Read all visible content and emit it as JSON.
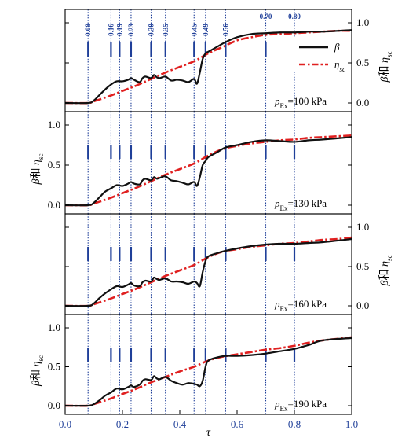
{
  "chart_data": {
    "type": "line",
    "xlabel": "τ",
    "xlim": [
      0.0,
      1.0
    ],
    "x_ticks": [
      "0.0",
      "0.2",
      "0.4",
      "0.6",
      "0.8",
      "1.0"
    ],
    "ylim": [
      0.0,
      1.0
    ],
    "ylabel_parts": {
      "greek": "β",
      "mid": "和",
      "eta": "η",
      "sub": "sc"
    },
    "y_ticks": [
      "0.0",
      "0.5",
      "1.0"
    ],
    "vertical_lines": {
      "values": [
        0.08,
        0.16,
        0.19,
        0.23,
        0.3,
        0.35,
        0.45,
        0.49,
        0.56,
        0.7,
        0.8
      ],
      "labels": [
        "0.08",
        "0.16",
        "0.19",
        "0.23",
        "0.30",
        "0.35",
        "0.45",
        "0.49",
        "0.56",
        "0.70",
        "0.80"
      ]
    },
    "legend": {
      "position": "top-right of first panel",
      "entries": [
        {
          "symbol": "β",
          "style": "solid",
          "color": "#111111"
        },
        {
          "symbol": "η",
          "sub": "sc",
          "style": "dash-dot",
          "color": "#e02020"
        }
      ]
    },
    "series_styles": {
      "beta": {
        "color": "#111111"
      },
      "eta": {
        "color": "#e02020"
      }
    },
    "panels": [
      {
        "annotation": {
          "p": "p",
          "sub": "Ex",
          "value": "=100 kPa"
        },
        "y_axis_side": "right",
        "beta": {
          "x": [
            0,
            0.08,
            0.1,
            0.12,
            0.14,
            0.16,
            0.18,
            0.2,
            0.22,
            0.23,
            0.24,
            0.26,
            0.27,
            0.28,
            0.3,
            0.31,
            0.32,
            0.33,
            0.35,
            0.37,
            0.39,
            0.41,
            0.43,
            0.45,
            0.46,
            0.47,
            0.48,
            0.49,
            0.5,
            0.53,
            0.56,
            0.6,
            0.65,
            0.7,
            0.75,
            0.8,
            0.85,
            0.9,
            1.0
          ],
          "y": [
            0,
            0,
            0.03,
            0.1,
            0.17,
            0.23,
            0.27,
            0.27,
            0.29,
            0.31,
            0.29,
            0.26,
            0.31,
            0.33,
            0.31,
            0.35,
            0.32,
            0.31,
            0.33,
            0.28,
            0.29,
            0.28,
            0.26,
            0.3,
            0.24,
            0.38,
            0.55,
            0.62,
            0.64,
            0.7,
            0.76,
            0.82,
            0.86,
            0.87,
            0.88,
            0.88,
            0.89,
            0.89,
            0.91
          ]
        },
        "eta": {
          "x": [
            0,
            0.08,
            0.1,
            0.15,
            0.2,
            0.25,
            0.3,
            0.35,
            0.4,
            0.45,
            0.5,
            0.55,
            0.6,
            0.65,
            0.7,
            0.75,
            0.8,
            0.85,
            0.9,
            0.95,
            1.0
          ],
          "y": [
            0,
            0,
            0.02,
            0.08,
            0.15,
            0.22,
            0.3,
            0.38,
            0.45,
            0.52,
            0.62,
            0.7,
            0.78,
            0.82,
            0.85,
            0.86,
            0.87,
            0.88,
            0.89,
            0.9,
            0.9
          ]
        }
      },
      {
        "annotation": {
          "p": "p",
          "sub": "Ex",
          "value": "=130 kPa"
        },
        "y_axis_side": "left",
        "beta": {
          "x": [
            0,
            0.08,
            0.1,
            0.12,
            0.14,
            0.16,
            0.18,
            0.2,
            0.22,
            0.23,
            0.24,
            0.26,
            0.27,
            0.28,
            0.3,
            0.31,
            0.32,
            0.33,
            0.35,
            0.37,
            0.39,
            0.41,
            0.43,
            0.45,
            0.46,
            0.47,
            0.48,
            0.49,
            0.5,
            0.53,
            0.56,
            0.6,
            0.65,
            0.7,
            0.75,
            0.8,
            0.85,
            0.9,
            1.0
          ],
          "y": [
            0,
            0,
            0.03,
            0.1,
            0.17,
            0.21,
            0.25,
            0.24,
            0.27,
            0.29,
            0.27,
            0.26,
            0.31,
            0.33,
            0.31,
            0.35,
            0.33,
            0.34,
            0.36,
            0.31,
            0.3,
            0.28,
            0.26,
            0.29,
            0.24,
            0.35,
            0.5,
            0.55,
            0.6,
            0.66,
            0.72,
            0.75,
            0.79,
            0.81,
            0.8,
            0.79,
            0.81,
            0.82,
            0.85
          ]
        },
        "eta": {
          "x": [
            0,
            0.08,
            0.1,
            0.15,
            0.2,
            0.25,
            0.3,
            0.35,
            0.4,
            0.45,
            0.5,
            0.55,
            0.6,
            0.65,
            0.7,
            0.75,
            0.8,
            0.85,
            0.9,
            0.95,
            1.0
          ],
          "y": [
            0,
            0,
            0.02,
            0.08,
            0.15,
            0.22,
            0.3,
            0.38,
            0.45,
            0.52,
            0.62,
            0.7,
            0.74,
            0.77,
            0.79,
            0.81,
            0.82,
            0.84,
            0.85,
            0.86,
            0.87
          ]
        }
      },
      {
        "annotation": {
          "p": "p",
          "sub": "Ex",
          "value": "=160 kPa"
        },
        "y_axis_side": "right",
        "beta": {
          "x": [
            0,
            0.08,
            0.1,
            0.12,
            0.14,
            0.16,
            0.18,
            0.2,
            0.22,
            0.23,
            0.24,
            0.26,
            0.27,
            0.28,
            0.3,
            0.31,
            0.32,
            0.33,
            0.35,
            0.37,
            0.39,
            0.41,
            0.43,
            0.45,
            0.46,
            0.47,
            0.48,
            0.49,
            0.5,
            0.53,
            0.56,
            0.6,
            0.65,
            0.7,
            0.75,
            0.8,
            0.85,
            0.9,
            1.0
          ],
          "y": [
            0,
            0,
            0.03,
            0.1,
            0.16,
            0.21,
            0.25,
            0.24,
            0.27,
            0.29,
            0.26,
            0.25,
            0.3,
            0.32,
            0.31,
            0.36,
            0.34,
            0.33,
            0.35,
            0.31,
            0.31,
            0.3,
            0.28,
            0.31,
            0.29,
            0.25,
            0.43,
            0.57,
            0.63,
            0.67,
            0.7,
            0.73,
            0.76,
            0.78,
            0.79,
            0.79,
            0.8,
            0.81,
            0.85
          ]
        },
        "eta": {
          "x": [
            0,
            0.08,
            0.1,
            0.15,
            0.2,
            0.25,
            0.3,
            0.35,
            0.4,
            0.45,
            0.5,
            0.55,
            0.6,
            0.65,
            0.7,
            0.75,
            0.8,
            0.85,
            0.9,
            0.95,
            1.0
          ],
          "y": [
            0,
            0,
            0.02,
            0.08,
            0.15,
            0.22,
            0.3,
            0.38,
            0.45,
            0.52,
            0.62,
            0.69,
            0.72,
            0.75,
            0.77,
            0.79,
            0.8,
            0.82,
            0.84,
            0.85,
            0.87
          ]
        }
      },
      {
        "annotation": {
          "p": "p",
          "sub": "Ex",
          "value": "=190 kPa"
        },
        "y_axis_side": "left",
        "beta": {
          "x": [
            0,
            0.08,
            0.1,
            0.12,
            0.14,
            0.16,
            0.18,
            0.2,
            0.22,
            0.23,
            0.24,
            0.26,
            0.27,
            0.28,
            0.3,
            0.31,
            0.32,
            0.33,
            0.35,
            0.37,
            0.39,
            0.41,
            0.43,
            0.45,
            0.46,
            0.47,
            0.48,
            0.49,
            0.5,
            0.53,
            0.56,
            0.6,
            0.65,
            0.7,
            0.75,
            0.8,
            0.85,
            0.9,
            1.0
          ],
          "y": [
            0,
            0,
            0.02,
            0.07,
            0.13,
            0.17,
            0.22,
            0.21,
            0.24,
            0.26,
            0.24,
            0.27,
            0.32,
            0.34,
            0.33,
            0.38,
            0.35,
            0.34,
            0.37,
            0.32,
            0.29,
            0.27,
            0.29,
            0.28,
            0.27,
            0.25,
            0.32,
            0.5,
            0.58,
            0.62,
            0.64,
            0.64,
            0.65,
            0.67,
            0.7,
            0.73,
            0.78,
            0.84,
            0.87
          ]
        },
        "eta": {
          "x": [
            0,
            0.08,
            0.1,
            0.15,
            0.2,
            0.25,
            0.3,
            0.35,
            0.4,
            0.45,
            0.5,
            0.55,
            0.6,
            0.65,
            0.7,
            0.75,
            0.8,
            0.85,
            0.9,
            0.95,
            1.0
          ],
          "y": [
            0,
            0,
            0.02,
            0.08,
            0.15,
            0.22,
            0.3,
            0.37,
            0.44,
            0.5,
            0.58,
            0.63,
            0.66,
            0.69,
            0.72,
            0.74,
            0.77,
            0.81,
            0.84,
            0.86,
            0.88
          ]
        }
      }
    ]
  }
}
